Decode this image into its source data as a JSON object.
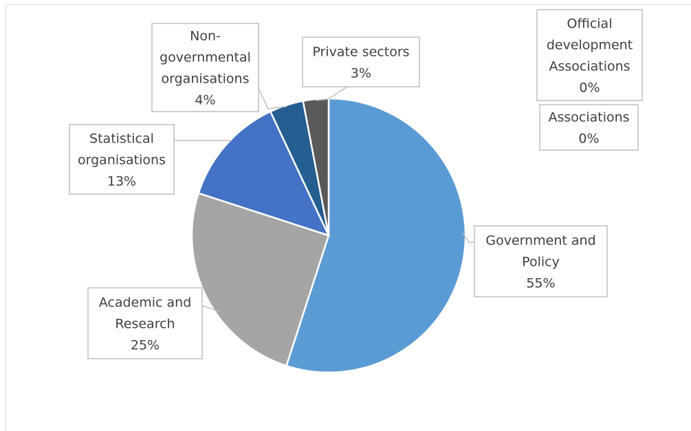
{
  "chart_data": {
    "type": "pie",
    "title": "",
    "slices": [
      {
        "label_lines": [
          "Government and",
          "Policy"
        ],
        "pct_text": "55%",
        "value": 55,
        "color": "#5b9bd5"
      },
      {
        "label_lines": [
          "Academic and",
          "Research"
        ],
        "pct_text": "25%",
        "value": 25,
        "color": "#a5a5a5"
      },
      {
        "label_lines": [
          "Statistical",
          "organisations"
        ],
        "pct_text": "13%",
        "value": 13,
        "color": "#4472c4"
      },
      {
        "label_lines": [
          "Non-",
          "governmental",
          "organisations"
        ],
        "pct_text": "4%",
        "value": 4,
        "color": "#255e91"
      },
      {
        "label_lines": [
          "Private sectors"
        ],
        "pct_text": "3%",
        "value": 3,
        "color": "#595959"
      },
      {
        "label_lines": [
          "Official",
          "development",
          "Associations"
        ],
        "pct_text": "0%",
        "value": 0,
        "color": "#264478"
      },
      {
        "label_lines": [
          "Associations"
        ],
        "pct_text": "0%",
        "value": 0,
        "color": "#9e480e"
      }
    ]
  }
}
